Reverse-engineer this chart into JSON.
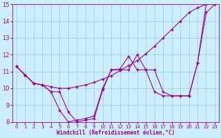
{
  "xlabel": "Windchill (Refroidissement éolien,°C)",
  "bg_color": "#cceeff",
  "grid_color": "#99cccc",
  "line_color": "#990099",
  "xlim": [
    -0.5,
    23.5
  ],
  "ylim": [
    8,
    15
  ],
  "xticks": [
    0,
    1,
    2,
    3,
    4,
    5,
    6,
    7,
    8,
    9,
    10,
    11,
    12,
    13,
    14,
    15,
    16,
    17,
    18,
    19,
    20,
    21,
    22,
    23
  ],
  "yticks": [
    8,
    9,
    10,
    11,
    12,
    13,
    14,
    15
  ],
  "s1_x": [
    0,
    1,
    2,
    3,
    4,
    5,
    6,
    7,
    8,
    9,
    10,
    11,
    12,
    13,
    14,
    15,
    16,
    17,
    18,
    19,
    20,
    21,
    22,
    23
  ],
  "s1_y": [
    11.3,
    10.8,
    10.3,
    10.2,
    10.1,
    10.0,
    10.0,
    10.1,
    10.2,
    10.35,
    10.55,
    10.75,
    11.05,
    11.35,
    11.65,
    12.05,
    12.5,
    13.0,
    13.5,
    14.0,
    14.5,
    14.8,
    15.0,
    15.0
  ],
  "s2_x": [
    0,
    1,
    2,
    3,
    4,
    5,
    6,
    7,
    8,
    9,
    10,
    11,
    12,
    13,
    14,
    15,
    16,
    17,
    18,
    19,
    20,
    21,
    22,
    23
  ],
  "s2_y": [
    11.3,
    10.8,
    10.3,
    10.2,
    9.8,
    9.8,
    8.6,
    8.0,
    8.1,
    8.2,
    9.9,
    11.1,
    11.1,
    11.1,
    12.0,
    11.1,
    11.1,
    9.8,
    9.55,
    9.55,
    9.55,
    11.5,
    14.5,
    15.0
  ],
  "s3_x": [
    0,
    1,
    2,
    3,
    4,
    5,
    6,
    7,
    8,
    9,
    10,
    11,
    12,
    13,
    14,
    15,
    16,
    17,
    18,
    19,
    20,
    21,
    22,
    23
  ],
  "s3_y": [
    11.3,
    10.8,
    10.3,
    10.2,
    9.8,
    8.7,
    8.0,
    8.1,
    8.2,
    8.35,
    10.0,
    11.1,
    11.15,
    11.9,
    11.1,
    11.1,
    9.8,
    9.55,
    9.55,
    9.55,
    9.55,
    11.5,
    15.0,
    15.0
  ]
}
